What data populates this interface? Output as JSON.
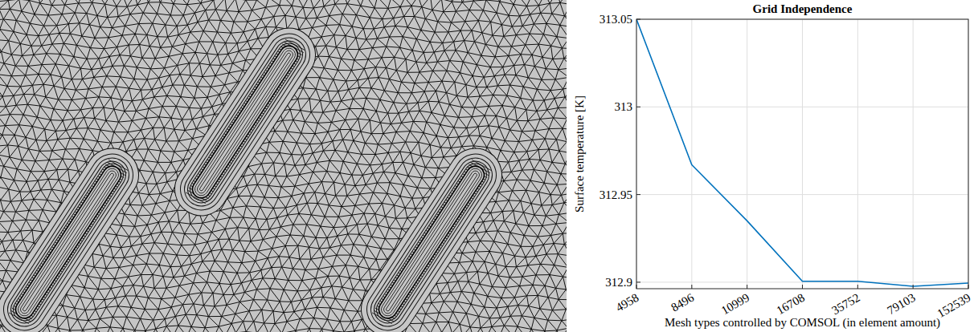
{
  "chart_data": {
    "type": "line",
    "title": "Grid Independence",
    "x_label": "Mesh types controlled by COMSOL (in element amount)",
    "y_label": "Surface temperature [K]",
    "categories": [
      "4958",
      "8496",
      "10999",
      "16708",
      "35752",
      "79103",
      "152539"
    ],
    "values": [
      313.05,
      312.967,
      312.935,
      312.9005,
      312.9005,
      312.8977,
      312.8995
    ],
    "color": "#0072bd",
    "ylim": [
      312.8963,
      313.05
    ],
    "yticks": [
      312.9,
      312.95,
      313,
      313.05
    ],
    "grid": true
  }
}
